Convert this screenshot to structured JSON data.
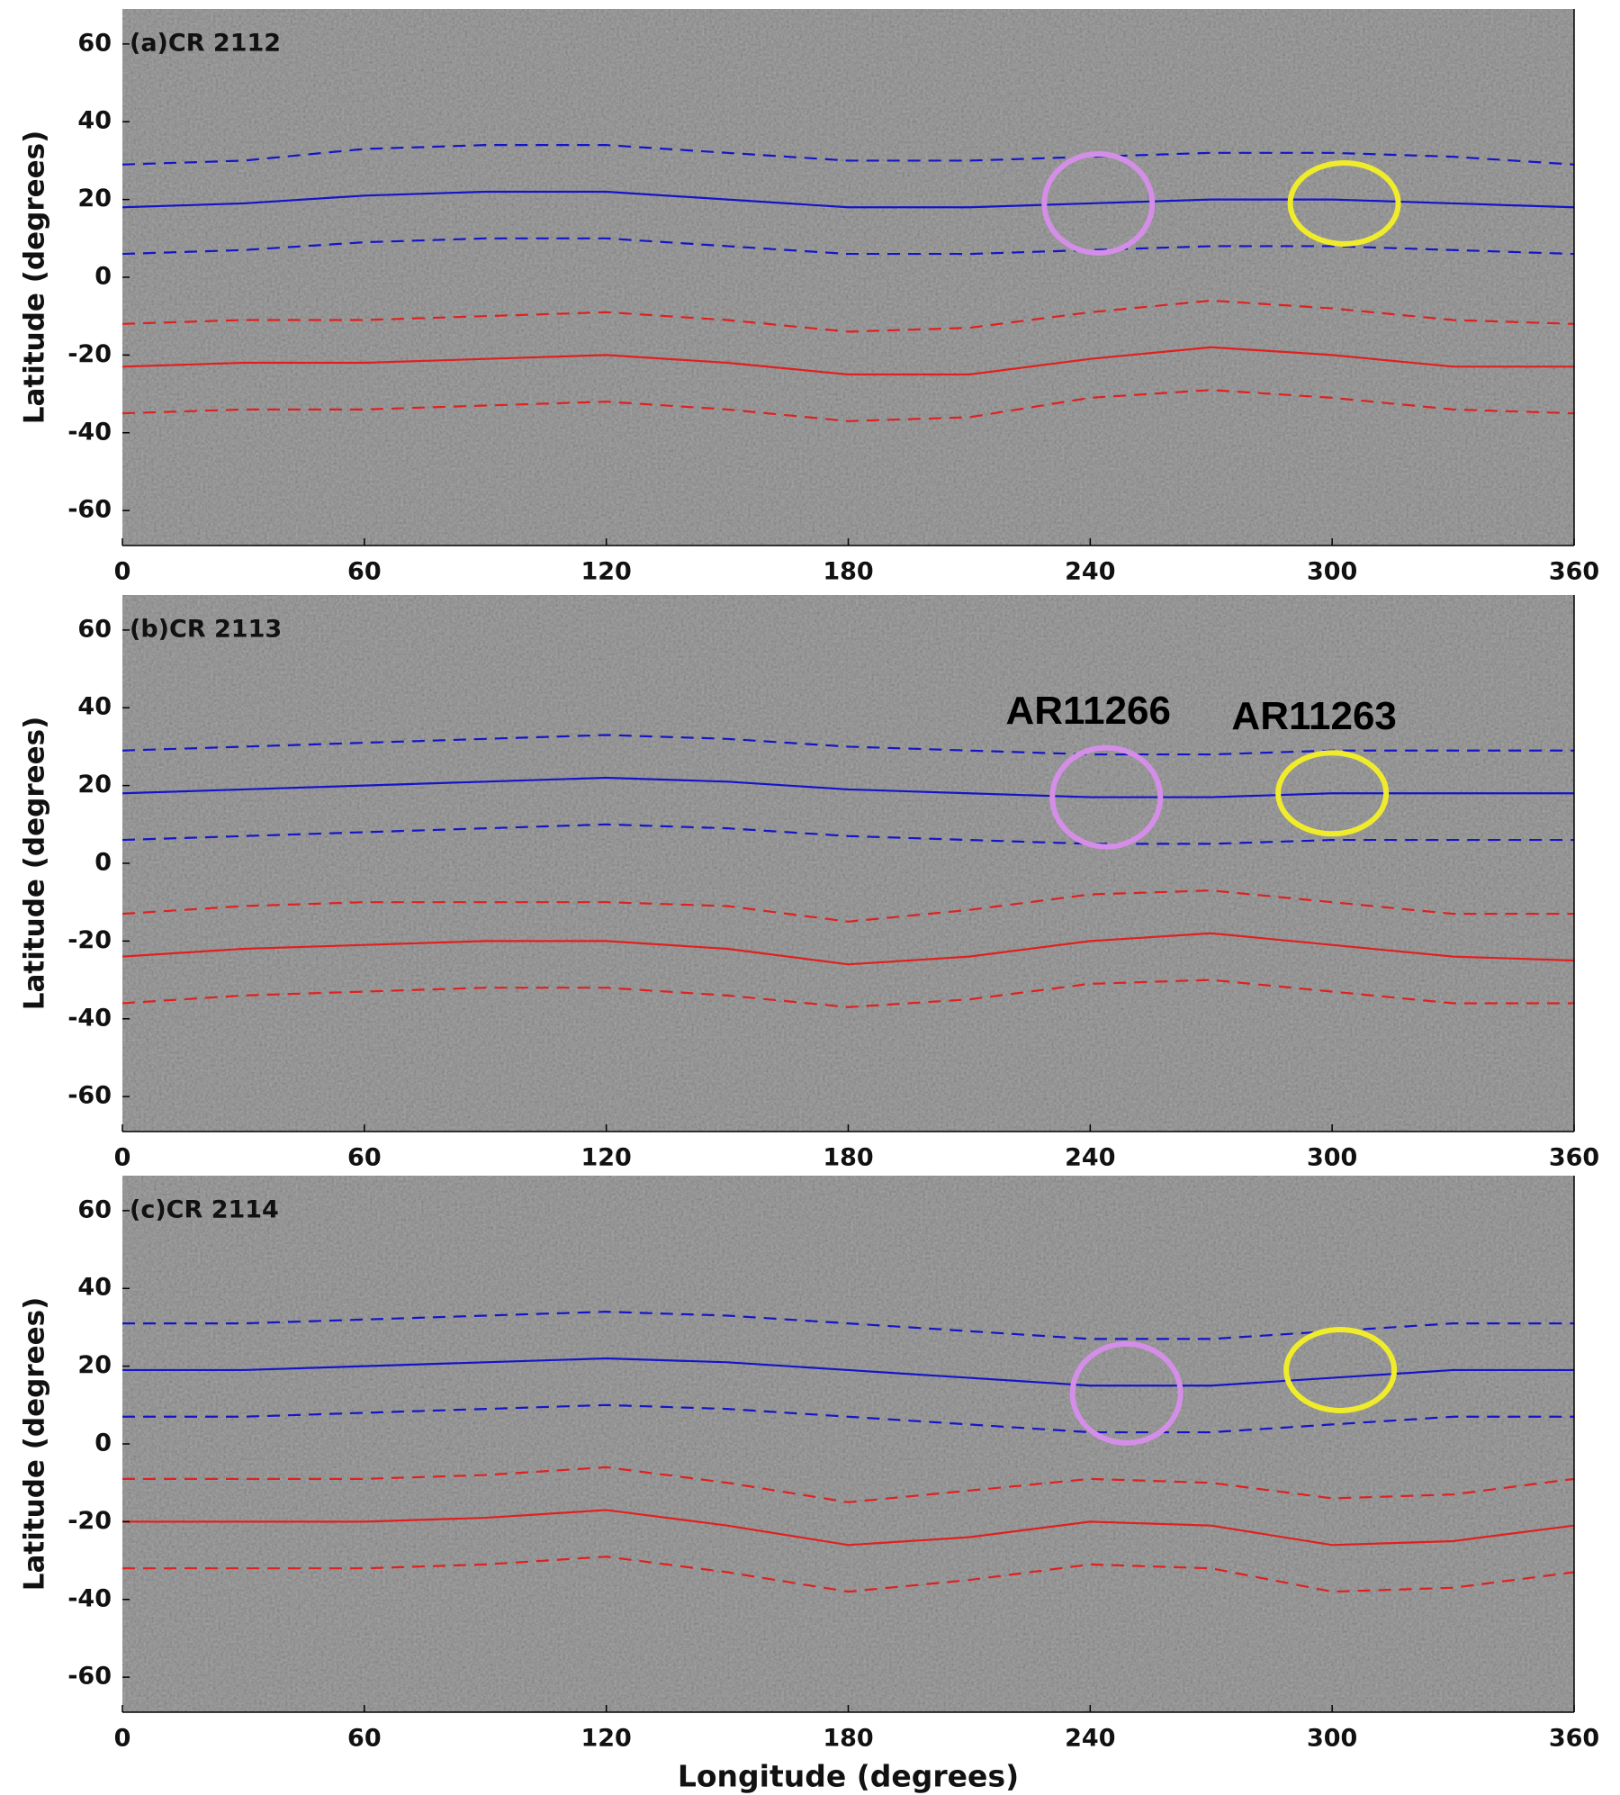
{
  "chart_data": [
    {
      "type": "line",
      "title": "(a)CR 2112",
      "ylabel": "Latitude (degrees)",
      "x": [
        0,
        30,
        60,
        90,
        120,
        150,
        180,
        210,
        240,
        270,
        300,
        330,
        360
      ],
      "xlim": [
        0,
        360
      ],
      "xticks": [
        0,
        60,
        120,
        180,
        240,
        300,
        360
      ],
      "ylim": [
        -69,
        69
      ],
      "yticks": [
        -60,
        -40,
        -20,
        0,
        20,
        40,
        60
      ],
      "series": [
        {
          "color": "#1515c8",
          "dashed": false,
          "values": [
            18,
            19,
            21,
            22,
            22,
            20,
            18,
            18,
            19,
            20,
            20,
            19,
            18
          ]
        },
        {
          "color": "#1515c8",
          "dashed": true,
          "values": [
            29,
            30,
            33,
            34,
            34,
            32,
            30,
            30,
            31,
            32,
            32,
            31,
            29
          ]
        },
        {
          "color": "#1515c8",
          "dashed": true,
          "values": [
            6,
            7,
            9,
            10,
            10,
            8,
            6,
            6,
            7,
            8,
            8,
            7,
            6
          ]
        },
        {
          "color": "#e02020",
          "dashed": false,
          "values": [
            -23,
            -22,
            -22,
            -21,
            -20,
            -22,
            -25,
            -25,
            -21,
            -18,
            -20,
            -23,
            -23
          ]
        },
        {
          "color": "#e02020",
          "dashed": true,
          "values": [
            -12,
            -11,
            -11,
            -10,
            -9,
            -11,
            -14,
            -13,
            -9,
            -6,
            -8,
            -11,
            -12
          ]
        },
        {
          "color": "#e02020",
          "dashed": true,
          "values": [
            -35,
            -34,
            -34,
            -33,
            -32,
            -34,
            -37,
            -36,
            -31,
            -29,
            -31,
            -34,
            -35
          ]
        }
      ],
      "regions": [
        {
          "color": "#d58ee8",
          "x": 242,
          "y": 19
        },
        {
          "color": "#f0ec2c",
          "x": 303,
          "y": 19
        }
      ]
    },
    {
      "type": "line",
      "title": "(b)CR 2113",
      "ylabel": "Latitude (degrees)",
      "x": [
        0,
        30,
        60,
        90,
        120,
        150,
        180,
        210,
        240,
        270,
        300,
        330,
        360
      ],
      "xlim": [
        0,
        360
      ],
      "xticks": [
        0,
        60,
        120,
        180,
        240,
        300,
        360
      ],
      "ylim": [
        -69,
        69
      ],
      "yticks": [
        -60,
        -40,
        -20,
        0,
        20,
        40,
        60
      ],
      "series": [
        {
          "color": "#1515c8",
          "dashed": false,
          "values": [
            18,
            19,
            20,
            21,
            22,
            21,
            19,
            18,
            17,
            17,
            18,
            18,
            18
          ]
        },
        {
          "color": "#1515c8",
          "dashed": true,
          "values": [
            29,
            30,
            31,
            32,
            33,
            32,
            30,
            29,
            28,
            28,
            29,
            29,
            29
          ]
        },
        {
          "color": "#1515c8",
          "dashed": true,
          "values": [
            6,
            7,
            8,
            9,
            10,
            9,
            7,
            6,
            5,
            5,
            6,
            6,
            6
          ]
        },
        {
          "color": "#e02020",
          "dashed": false,
          "values": [
            -24,
            -22,
            -21,
            -20,
            -20,
            -22,
            -26,
            -24,
            -20,
            -18,
            -21,
            -24,
            -25
          ]
        },
        {
          "color": "#e02020",
          "dashed": true,
          "values": [
            -13,
            -11,
            -10,
            -10,
            -10,
            -11,
            -15,
            -12,
            -8,
            -7,
            -10,
            -13,
            -13
          ]
        },
        {
          "color": "#e02020",
          "dashed": true,
          "values": [
            -36,
            -34,
            -33,
            -32,
            -32,
            -34,
            -37,
            -35,
            -31,
            -30,
            -33,
            -36,
            -36
          ]
        }
      ],
      "regions": [
        {
          "color": "#d58ee8",
          "x": 244,
          "y": 17,
          "label": "AR11266"
        },
        {
          "color": "#f0ec2c",
          "x": 300,
          "y": 18,
          "label": "AR11263"
        }
      ]
    },
    {
      "type": "line",
      "title": "(c)CR 2114",
      "ylabel": "Latitude (degrees)",
      "xlabel": "Longitude (degrees)",
      "x": [
        0,
        30,
        60,
        90,
        120,
        150,
        180,
        210,
        240,
        270,
        300,
        330,
        360
      ],
      "xlim": [
        0,
        360
      ],
      "xticks": [
        0,
        60,
        120,
        180,
        240,
        300,
        360
      ],
      "ylim": [
        -69,
        69
      ],
      "yticks": [
        -60,
        -40,
        -20,
        0,
        20,
        40,
        60
      ],
      "series": [
        {
          "color": "#1515c8",
          "dashed": false,
          "values": [
            19,
            19,
            20,
            21,
            22,
            21,
            19,
            17,
            15,
            15,
            17,
            19,
            19
          ]
        },
        {
          "color": "#1515c8",
          "dashed": true,
          "values": [
            31,
            31,
            32,
            33,
            34,
            33,
            31,
            29,
            27,
            27,
            29,
            31,
            31
          ]
        },
        {
          "color": "#1515c8",
          "dashed": true,
          "values": [
            7,
            7,
            8,
            9,
            10,
            9,
            7,
            5,
            3,
            3,
            5,
            7,
            7
          ]
        },
        {
          "color": "#e02020",
          "dashed": false,
          "values": [
            -20,
            -20,
            -20,
            -19,
            -17,
            -21,
            -26,
            -24,
            -20,
            -21,
            -26,
            -25,
            -21
          ]
        },
        {
          "color": "#e02020",
          "dashed": true,
          "values": [
            -9,
            -9,
            -9,
            -8,
            -6,
            -10,
            -15,
            -12,
            -9,
            -10,
            -14,
            -13,
            -9
          ]
        },
        {
          "color": "#e02020",
          "dashed": true,
          "values": [
            -32,
            -32,
            -32,
            -31,
            -29,
            -33,
            -38,
            -35,
            -31,
            -32,
            -38,
            -37,
            -33
          ]
        }
      ],
      "regions": [
        {
          "color": "#d58ee8",
          "x": 249,
          "y": 13
        },
        {
          "color": "#f0ec2c",
          "x": 302,
          "y": 19
        }
      ]
    }
  ]
}
